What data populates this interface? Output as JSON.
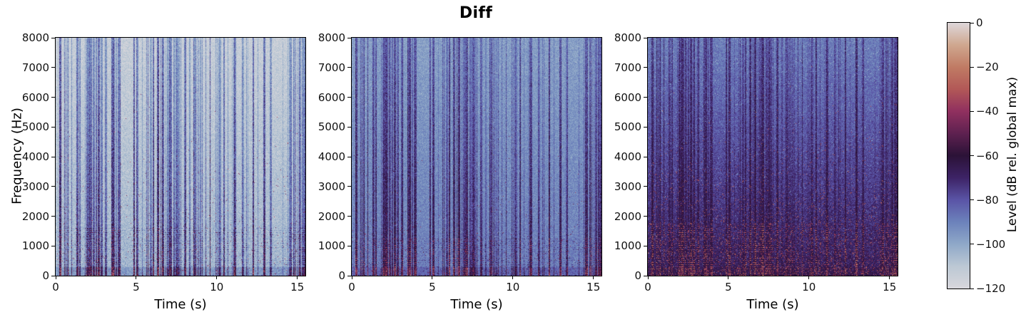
{
  "chart_data": {
    "type": "heatmap",
    "subtype": "spectrogram-triptych",
    "title": "Diff",
    "grid": false,
    "x": {
      "label": "Time (s)",
      "range": [
        0,
        15.5
      ],
      "ticks": [
        0,
        5,
        10,
        15
      ],
      "tick_labels": [
        "0",
        "5",
        "10",
        "15"
      ]
    },
    "y": {
      "label": "Frequency (Hz)",
      "range": [
        0,
        8000
      ],
      "ticks": [
        0,
        1000,
        2000,
        3000,
        4000,
        5000,
        6000,
        7000,
        8000
      ],
      "tick_labels": [
        "0",
        "1000",
        "2000",
        "3000",
        "4000",
        "5000",
        "6000",
        "7000",
        "8000"
      ]
    },
    "colorbar": {
      "label": "Level (dB rel. global max)",
      "position": "right",
      "range_db": [
        -120,
        0
      ],
      "ticks_db": [
        0,
        -20,
        -40,
        -60,
        -80,
        -100,
        -120
      ],
      "tick_labels": [
        "0",
        "−20",
        "−40",
        "−60",
        "−80",
        "−100",
        "−120"
      ],
      "colormap_name": "twilight",
      "stops": [
        {
          "db": 0,
          "color": "#ded7da"
        },
        {
          "db": -10,
          "color": "#cfa78f"
        },
        {
          "db": -20,
          "color": "#c07b64"
        },
        {
          "db": -30,
          "color": "#b25857"
        },
        {
          "db": -40,
          "color": "#90305f"
        },
        {
          "db": -50,
          "color": "#5e2150"
        },
        {
          "db": -60,
          "color": "#2b1237"
        },
        {
          "db": -70,
          "color": "#3d2366"
        },
        {
          "db": -80,
          "color": "#5a54a6"
        },
        {
          "db": -90,
          "color": "#6c82bb"
        },
        {
          "db": -100,
          "color": "#8fa8c8"
        },
        {
          "db": -110,
          "color": "#bcc8d4"
        },
        {
          "db": -120,
          "color": "#d8d7dc"
        }
      ]
    },
    "panels": [
      {
        "name": "panel-1",
        "appearance": "lightest: near-white background with blue/purple vertical speech streaks, maroon speckles below 2000 Hz",
        "texture": {
          "background_top_db": -114,
          "background_bottom_db": -104,
          "streak_gain_top_db": 40,
          "streak_gain_bottom_db": 55,
          "noise_db": 6.5,
          "salt_prob": 0.012,
          "salt_depth_db": 6,
          "floor_boost_db": 18,
          "harmonics_start_frac": 0.8,
          "harmonics_gain_db": 24,
          "red_speckle_prob": 0.004,
          "red_speckle_db": -42
        }
      },
      {
        "name": "panel-2",
        "appearance": "medium: steel-blue background, dark purple streaks, maroon patches below 2000 Hz",
        "texture": {
          "background_top_db": -98,
          "background_bottom_db": -89,
          "streak_gain_top_db": 28,
          "streak_gain_bottom_db": 45,
          "noise_db": 6.0,
          "salt_prob": 0.01,
          "salt_depth_db": 9,
          "floor_boost_db": 14,
          "harmonics_start_frac": 0.84,
          "harmonics_gain_db": 26,
          "red_speckle_prob": 0.003,
          "red_speckle_db": -46
        }
      },
      {
        "name": "panel-3",
        "appearance": "darkest: blue-violet top fading to near-black purple, orange-red harmonic band below 1000 Hz",
        "texture": {
          "background_top_db": -90,
          "background_bottom_db": -67,
          "streak_gain_top_db": 25,
          "streak_gain_bottom_db": 14,
          "noise_db": 6.5,
          "salt_prob": 0.02,
          "salt_depth_db": 16,
          "floor_boost_db": 6,
          "harmonics_start_frac": 0.78,
          "harmonics_gain_db": 34,
          "red_speckle_prob": 0.02,
          "red_speckle_db": -30
        }
      }
    ]
  }
}
